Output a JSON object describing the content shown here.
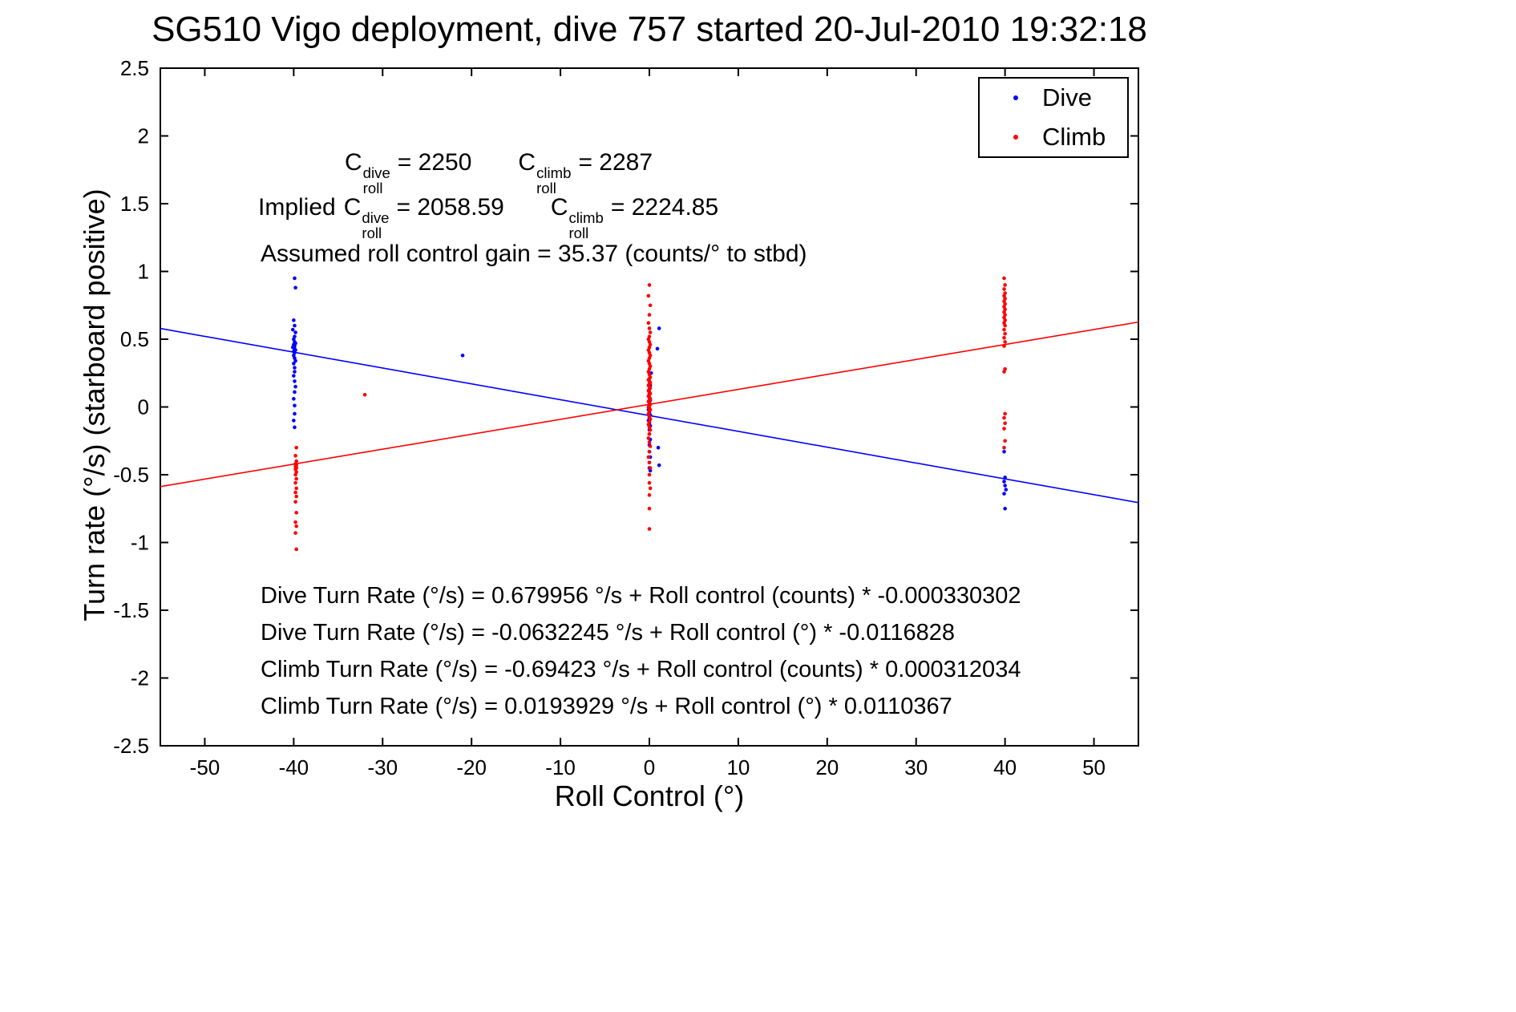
{
  "chart_data": {
    "type": "scatter",
    "title": "SG510 Vigo deployment, dive 757 started 20-Jul-2010 19:32:18",
    "xlabel": "Roll Control (°)",
    "ylabel": "Turn rate (°/s) (starboard positive)",
    "xlim": [
      -55,
      55
    ],
    "ylim": [
      -2.5,
      2.5
    ],
    "grid": false,
    "legend_position": "top-right",
    "xticks": [
      -50,
      -40,
      -30,
      -20,
      -10,
      0,
      10,
      20,
      30,
      40,
      50
    ],
    "xtick_labels": [
      "-50",
      "-40",
      "-30",
      "-20",
      "-10",
      "0",
      "10",
      "20",
      "30",
      "40",
      "50"
    ],
    "yticks": [
      -2.5,
      -2,
      -1.5,
      -1,
      -0.5,
      0,
      0.5,
      1,
      1.5,
      2,
      2.5
    ],
    "ytick_labels": [
      "-2.5",
      "-2",
      "-1.5",
      "-1",
      "-0.5",
      "0",
      "0.5",
      "1",
      "1.5",
      "2",
      "2.5"
    ],
    "legend": [
      {
        "label": "Dive",
        "color": "#0000ff"
      },
      {
        "label": "Climb",
        "color": "#ff0000"
      }
    ],
    "fits": [
      {
        "name": "dive",
        "color": "#0000ff",
        "intercept": -0.0632245,
        "slope": -0.0116828
      },
      {
        "name": "climb",
        "color": "#ff0000",
        "intercept": 0.0193929,
        "slope": 0.0110367
      }
    ],
    "series": [
      {
        "name": "Dive",
        "color": "#0000ff",
        "points": [
          [
            -39.9,
            0.95
          ],
          [
            -39.8,
            0.88
          ],
          [
            -40,
            0.64
          ],
          [
            -39.9,
            0.6
          ],
          [
            -40.1,
            0.57
          ],
          [
            -39.8,
            0.55
          ],
          [
            -39.9,
            0.52
          ],
          [
            -40,
            0.5
          ],
          [
            -39.9,
            0.48
          ],
          [
            -39.8,
            0.47
          ],
          [
            -40,
            0.46
          ],
          [
            -39.9,
            0.45
          ],
          [
            -40.1,
            0.44
          ],
          [
            -39.9,
            0.43
          ],
          [
            -39.8,
            0.42
          ],
          [
            -40,
            0.41
          ],
          [
            -39.9,
            0.4
          ],
          [
            -40,
            0.38
          ],
          [
            -39.9,
            0.36
          ],
          [
            -39.8,
            0.34
          ],
          [
            -40,
            0.32
          ],
          [
            -39.9,
            0.29
          ],
          [
            -39.9,
            0.26
          ],
          [
            -40,
            0.23
          ],
          [
            -39.9,
            0.19
          ],
          [
            -39.8,
            0.15
          ],
          [
            -39.9,
            0.11
          ],
          [
            -40,
            0.06
          ],
          [
            -39.9,
            0.01
          ],
          [
            -39.9,
            -0.05
          ],
          [
            -40,
            -0.1
          ],
          [
            -39.9,
            -0.15
          ],
          [
            -21,
            0.38
          ],
          [
            1.1,
            0.58
          ],
          [
            0.9,
            0.43
          ],
          [
            0.2,
            0.25
          ],
          [
            0.1,
            0.16
          ],
          [
            0,
            0.1
          ],
          [
            0.1,
            0.05
          ],
          [
            0,
            0.01
          ],
          [
            -0.1,
            -0.02
          ],
          [
            0,
            -0.04
          ],
          [
            0.1,
            -0.06
          ],
          [
            0,
            -0.08
          ],
          [
            -0.1,
            -0.1
          ],
          [
            0,
            -0.12
          ],
          [
            0.1,
            -0.14
          ],
          [
            0,
            -0.17
          ],
          [
            0,
            -0.2
          ],
          [
            0.1,
            -0.24
          ],
          [
            0,
            -0.28
          ],
          [
            1,
            -0.3
          ],
          [
            0,
            -0.33
          ],
          [
            0.1,
            -0.37
          ],
          [
            0,
            -0.41
          ],
          [
            1.1,
            -0.43
          ],
          [
            0,
            -0.45
          ],
          [
            0.1,
            -0.47
          ],
          [
            39.9,
            -0.33
          ],
          [
            40,
            -0.52
          ],
          [
            39.9,
            -0.55
          ],
          [
            40,
            -0.58
          ],
          [
            40.1,
            -0.61
          ],
          [
            39.9,
            -0.64
          ],
          [
            40,
            -0.75
          ]
        ]
      },
      {
        "name": "Climb",
        "color": "#ff0000",
        "points": [
          [
            -39.7,
            -0.3
          ],
          [
            -39.8,
            -0.36
          ],
          [
            -39.7,
            -0.4
          ],
          [
            -39.8,
            -0.42
          ],
          [
            -39.7,
            -0.43
          ],
          [
            -39.8,
            -0.44
          ],
          [
            -39.7,
            -0.45
          ],
          [
            -39.8,
            -0.46
          ],
          [
            -39.7,
            -0.48
          ],
          [
            -39.8,
            -0.5
          ],
          [
            -39.7,
            -0.53
          ],
          [
            -39.8,
            -0.56
          ],
          [
            -39.7,
            -0.6
          ],
          [
            -39.8,
            -0.63
          ],
          [
            -39.7,
            -0.66
          ],
          [
            -39.8,
            -0.7
          ],
          [
            -39.7,
            -0.78
          ],
          [
            -39.8,
            -0.85
          ],
          [
            -39.7,
            -0.88
          ],
          [
            -39.8,
            -0.93
          ],
          [
            -39.7,
            -1.05
          ],
          [
            -32,
            0.09
          ],
          [
            0,
            0.9
          ],
          [
            -0.1,
            0.82
          ],
          [
            0.1,
            0.75
          ],
          [
            0,
            0.68
          ],
          [
            -0.1,
            0.62
          ],
          [
            0,
            0.58
          ],
          [
            0.1,
            0.55
          ],
          [
            0,
            0.52
          ],
          [
            -0.1,
            0.5
          ],
          [
            0,
            0.48
          ],
          [
            0.1,
            0.46
          ],
          [
            0,
            0.44
          ],
          [
            -0.1,
            0.42
          ],
          [
            0,
            0.4
          ],
          [
            0.1,
            0.38
          ],
          [
            0,
            0.36
          ],
          [
            -0.1,
            0.34
          ],
          [
            0,
            0.32
          ],
          [
            0.1,
            0.3
          ],
          [
            0,
            0.28
          ],
          [
            -0.1,
            0.26
          ],
          [
            0,
            0.24
          ],
          [
            0.1,
            0.22
          ],
          [
            0,
            0.21
          ],
          [
            -0.1,
            0.2
          ],
          [
            0,
            0.19
          ],
          [
            0.1,
            0.18
          ],
          [
            0,
            0.17
          ],
          [
            -0.1,
            0.16
          ],
          [
            0,
            0.15
          ],
          [
            0.1,
            0.14
          ],
          [
            0,
            0.13
          ],
          [
            -0.1,
            0.12
          ],
          [
            0,
            0.11
          ],
          [
            0.1,
            0.1
          ],
          [
            0,
            0.09
          ],
          [
            -0.1,
            0.08
          ],
          [
            0,
            0.07
          ],
          [
            0.1,
            0.06
          ],
          [
            0,
            0.05
          ],
          [
            -0.1,
            0.04
          ],
          [
            0,
            0.03
          ],
          [
            0.1,
            0.02
          ],
          [
            0,
            0.01
          ],
          [
            -0.1,
            0
          ],
          [
            0,
            -0.01
          ],
          [
            0.1,
            -0.02
          ],
          [
            0,
            -0.03
          ],
          [
            -0.1,
            -0.05
          ],
          [
            0,
            -0.07
          ],
          [
            0.1,
            -0.09
          ],
          [
            0,
            -0.11
          ],
          [
            -0.1,
            -0.13
          ],
          [
            0,
            -0.15
          ],
          [
            0.1,
            -0.17
          ],
          [
            0,
            -0.2
          ],
          [
            -0.1,
            -0.23
          ],
          [
            0,
            -0.26
          ],
          [
            0.1,
            -0.29
          ],
          [
            0,
            -0.33
          ],
          [
            -0.1,
            -0.37
          ],
          [
            0,
            -0.41
          ],
          [
            0.1,
            -0.45
          ],
          [
            0,
            -0.5
          ],
          [
            0,
            -0.56
          ],
          [
            0.1,
            -0.6
          ],
          [
            0,
            -0.65
          ],
          [
            0,
            -0.75
          ],
          [
            0,
            -0.9
          ],
          [
            39.9,
            0.95
          ],
          [
            40,
            0.9
          ],
          [
            39.9,
            0.87
          ],
          [
            40,
            0.84
          ],
          [
            39.9,
            0.82
          ],
          [
            40,
            0.8
          ],
          [
            39.9,
            0.78
          ],
          [
            40,
            0.76
          ],
          [
            39.9,
            0.74
          ],
          [
            40,
            0.72
          ],
          [
            39.9,
            0.7
          ],
          [
            40,
            0.68
          ],
          [
            39.9,
            0.66
          ],
          [
            40,
            0.64
          ],
          [
            39.9,
            0.62
          ],
          [
            40,
            0.6
          ],
          [
            39.9,
            0.57
          ],
          [
            40,
            0.54
          ],
          [
            39.9,
            0.51
          ],
          [
            40,
            0.48
          ],
          [
            39.9,
            0.45
          ],
          [
            40,
            0.28
          ],
          [
            39.9,
            0.26
          ],
          [
            40,
            -0.05
          ],
          [
            39.9,
            -0.08
          ],
          [
            40,
            -0.12
          ],
          [
            39.9,
            -0.16
          ],
          [
            40,
            -0.25
          ],
          [
            39.9,
            -0.3
          ]
        ]
      }
    ]
  },
  "annotations": {
    "croll": {
      "sym": "C",
      "sub": "roll",
      "dive_sup": "dive",
      "dive_val": "= 2250",
      "climb_sup": "climb",
      "climb_val": "= 2287"
    },
    "implied": {
      "prefix": "Implied",
      "sym": "C",
      "sub": "roll",
      "dive_sup": "dive",
      "dive_val": "= 2058.59",
      "climb_sup": "climb",
      "climb_val": "= 2224.85"
    },
    "gain": "Assumed roll control gain = 35.37 (counts/° to stbd)"
  },
  "equations": [
    "Dive Turn Rate (°/s) = 0.679956 °/s + Roll control (counts) * -0.000330302",
    "Dive Turn Rate (°/s) = -0.0632245 °/s + Roll control (°) * -0.0116828",
    "Climb Turn Rate (°/s) = -0.69423 °/s + Roll control (counts) * 0.000312034",
    "Climb Turn Rate (°/s) = 0.0193929 °/s + Roll control (°) * 0.0110367"
  ]
}
